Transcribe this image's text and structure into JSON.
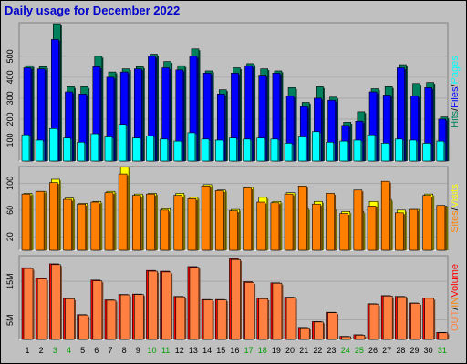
{
  "title": "Daily usage for December 2022",
  "colors": {
    "hits": "#00805c",
    "files": "#0000ff",
    "pages": "#00ffff",
    "visits": "#ffff00",
    "sites": "#ff8000",
    "kbytes_in": "#ff0000",
    "kbytes_out": "#ff8040",
    "weekend_day": "#00a000",
    "weekday_day": "#000000"
  },
  "legends": {
    "top": [
      {
        "text": "Hits",
        "color": "#00805c"
      },
      {
        "text": "/",
        "color": "#000000"
      },
      {
        "text": "Files",
        "color": "#0000ff"
      },
      {
        "text": "/",
        "color": "#000000"
      },
      {
        "text": "Pages",
        "color": "#00ffff"
      }
    ],
    "middle": [
      {
        "text": "Sites",
        "color": "#ff8000"
      },
      {
        "text": "/",
        "color": "#000000"
      },
      {
        "text": "Visits",
        "color": "#ffff00"
      }
    ],
    "bottom": [
      {
        "text": "OUT",
        "color": "#ff8040"
      },
      {
        "text": "/",
        "color": "#000000"
      },
      {
        "text": "IN",
        "color": "#ff8000"
      },
      {
        "text": "Volume",
        "color": "#ff0000"
      }
    ]
  },
  "chart_data": [
    {
      "type": "bar",
      "name": "hits-files-pages",
      "x": [
        "1",
        "2",
        "3",
        "4",
        "5",
        "6",
        "7",
        "8",
        "9",
        "10",
        "11",
        "12",
        "13",
        "14",
        "15",
        "16",
        "17",
        "18",
        "19",
        "20",
        "21",
        "22",
        "23",
        "24",
        "25",
        "26",
        "27",
        "28",
        "29",
        "30",
        "31"
      ],
      "weekend_days": [
        "3",
        "4",
        "10",
        "11",
        "17",
        "18",
        "24",
        "25",
        "31"
      ],
      "ylim": [
        0,
        660
      ],
      "yticks": [
        100,
        200,
        300,
        400,
        500
      ],
      "series": [
        {
          "name": "Hits",
          "values": [
            455,
            450,
            655,
            355,
            355,
            500,
            425,
            440,
            450,
            510,
            475,
            455,
            535,
            430,
            340,
            445,
            465,
            440,
            430,
            350,
            280,
            355,
            305,
            185,
            235,
            345,
            355,
            460,
            370,
            375,
            210
          ]
        },
        {
          "name": "Files",
          "values": [
            445,
            440,
            580,
            330,
            320,
            450,
            400,
            425,
            440,
            500,
            445,
            435,
            500,
            420,
            320,
            420,
            455,
            410,
            420,
            310,
            260,
            300,
            290,
            170,
            190,
            330,
            315,
            445,
            310,
            350,
            200
          ]
        },
        {
          "name": "Pages",
          "values": [
            125,
            100,
            155,
            110,
            90,
            130,
            115,
            175,
            110,
            120,
            105,
            95,
            135,
            105,
            100,
            110,
            105,
            110,
            105,
            85,
            115,
            140,
            90,
            95,
            100,
            125,
            85,
            105,
            100,
            85,
            95
          ]
        }
      ]
    },
    {
      "type": "bar",
      "name": "visits-sites",
      "x": [
        "1",
        "2",
        "3",
        "4",
        "5",
        "6",
        "7",
        "8",
        "9",
        "10",
        "11",
        "12",
        "13",
        "14",
        "15",
        "16",
        "17",
        "18",
        "19",
        "20",
        "21",
        "22",
        "23",
        "24",
        "25",
        "26",
        "27",
        "28",
        "29",
        "30",
        "31"
      ],
      "ylim": [
        0,
        125
      ],
      "yticks": [
        20,
        60,
        100
      ],
      "series": [
        {
          "name": "Visits",
          "values": [
            85,
            88,
            106,
            78,
            70,
            73,
            88,
            124,
            84,
            85,
            62,
            85,
            79,
            98,
            90,
            61,
            94,
            79,
            73,
            86,
            62,
            73,
            60,
            58,
            58,
            73,
            76,
            60,
            61,
            84,
            66
          ]
        },
        {
          "name": "Sites",
          "values": [
            84,
            88,
            101,
            76,
            69,
            72,
            86,
            114,
            82,
            84,
            60,
            82,
            77,
            96,
            89,
            59,
            93,
            72,
            71,
            84,
            96,
            69,
            85,
            55,
            90,
            66,
            103,
            56,
            61,
            82,
            67
          ]
        }
      ]
    },
    {
      "type": "bar",
      "name": "volume",
      "x": [
        "1",
        "2",
        "3",
        "4",
        "5",
        "6",
        "7",
        "8",
        "9",
        "10",
        "11",
        "12",
        "13",
        "14",
        "15",
        "16",
        "17",
        "18",
        "19",
        "20",
        "21",
        "22",
        "23",
        "24",
        "25",
        "26",
        "27",
        "28",
        "29",
        "30",
        "31"
      ],
      "ylim": [
        0,
        21.6
      ],
      "yticks": [
        5,
        15
      ],
      "ytick_labels": [
        "5M",
        "15M"
      ],
      "series": [
        {
          "name": "KBytes In",
          "values": [
            18.5,
            15.8,
            19.5,
            10.6,
            6.4,
            15.3,
            10.2,
            11.6,
            11.7,
            17.8,
            17.6,
            11.1,
            18.8,
            10.3,
            10.3,
            20.8,
            14.9,
            10.6,
            14.6,
            10.9,
            3.1,
            4.6,
            7.0,
            0.8,
            1.2,
            9.2,
            11.3,
            11.1,
            9.4,
            10.7,
            1.8
          ]
        },
        {
          "name": "KBytes Out",
          "values": [
            18.3,
            15.6,
            19.3,
            10.5,
            6.3,
            15.1,
            10.1,
            11.5,
            11.6,
            17.6,
            17.4,
            11.0,
            18.6,
            10.2,
            10.2,
            20.6,
            14.7,
            10.5,
            14.5,
            10.8,
            3.0,
            4.5,
            6.9,
            0.7,
            1.1,
            9.1,
            11.2,
            11.0,
            9.3,
            10.6,
            1.7
          ]
        }
      ]
    }
  ]
}
